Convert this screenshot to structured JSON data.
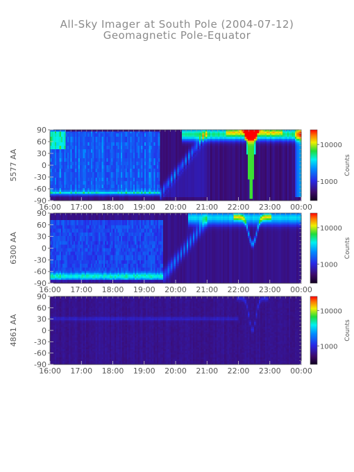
{
  "figure": {
    "title": "All-Sky Imager at South Pole (2004-07-12)",
    "subtitle": "Geomagnetic Pole-Equator"
  },
  "chart_data": [
    {
      "type": "heatmap",
      "panel": "5577 AA",
      "ylabel": "5577 AA",
      "x_ticks": [
        "16:00",
        "17:00",
        "18:00",
        "19:00",
        "20:00",
        "21:00",
        "22:00",
        "23:00",
        "00:00"
      ],
      "y_ticks": [
        90,
        60,
        30,
        0,
        -30,
        -60,
        -90
      ],
      "xlim": [
        "16:00",
        "00:00"
      ],
      "ylim": [
        -90,
        90
      ],
      "colorbar": {
        "label": "Counts",
        "ticks": [
          "10000",
          "1000"
        ],
        "scale": "log",
        "range_approx": [
          300,
          25000
        ]
      },
      "features": [
        {
          "time": "16:00-19:30",
          "lat_range": [
            -75,
            85
          ],
          "intensity": "moderate diffuse (blue-cyan)"
        },
        {
          "time": "19:30-21:00",
          "lat_range": [
            -80,
            60
          ],
          "intensity": "poleward-moving arcs"
        },
        {
          "time": "21:00-00:00",
          "lat_range": [
            60,
            90
          ],
          "intensity": "bright band near pole"
        },
        {
          "time": "22:15-22:45",
          "lat_range": [
            -85,
            90
          ],
          "intensity": "peak >10000 counts, equatorward spike"
        }
      ]
    },
    {
      "type": "heatmap",
      "panel": "6300 AA",
      "ylabel": "6300 AA",
      "x_ticks": [
        "16:00",
        "17:00",
        "18:00",
        "19:00",
        "20:00",
        "21:00",
        "22:00",
        "23:00",
        "00:00"
      ],
      "y_ticks": [
        90,
        60,
        30,
        0,
        -30,
        -60,
        -90
      ],
      "xlim": [
        "16:00",
        "00:00"
      ],
      "ylim": [
        -90,
        90
      ],
      "colorbar": {
        "label": "Counts",
        "ticks": [
          "10000",
          "1000"
        ],
        "scale": "log",
        "range_approx": [
          300,
          25000
        ]
      },
      "features": [
        {
          "time": "16:00-19:30",
          "lat_range": [
            -80,
            70
          ],
          "intensity": "diffuse blue, cyan at -70"
        },
        {
          "time": "19:30-21:00",
          "lat_range": [
            -75,
            70
          ],
          "intensity": "poleward-moving arcs"
        },
        {
          "time": "21:00-00:00",
          "lat_range": [
            60,
            90
          ],
          "intensity": "cyan band near pole"
        },
        {
          "time": "22:20-22:40",
          "lat_range": [
            10,
            60
          ],
          "intensity": "equatorward dip to ~10"
        }
      ]
    },
    {
      "type": "heatmap",
      "panel": "4861 AA",
      "ylabel": "4861 AA",
      "x_ticks": [
        "16:00",
        "17:00",
        "18:00",
        "19:00",
        "20:00",
        "21:00",
        "22:00",
        "23:00",
        "00:00"
      ],
      "y_ticks": [
        90,
        60,
        30,
        0,
        -30,
        -60,
        -90
      ],
      "xlim": [
        "16:00",
        "00:00"
      ],
      "ylim": [
        -90,
        90
      ],
      "colorbar": {
        "label": "Counts",
        "ticks": [
          "10000",
          "1000"
        ],
        "scale": "log",
        "range_approx": [
          300,
          25000
        ]
      },
      "features": [
        {
          "time": "16:00-00:00",
          "lat_range": [
            -90,
            90
          ],
          "intensity": "mostly background (dark purple)"
        },
        {
          "time": "16:00-22:00",
          "lat_range": [
            28,
            34
          ],
          "intensity": "faint horizontal line"
        },
        {
          "time": "22:15-22:45",
          "lat_range": [
            0,
            90
          ],
          "intensity": "faint V-shaped feature"
        }
      ]
    }
  ]
}
